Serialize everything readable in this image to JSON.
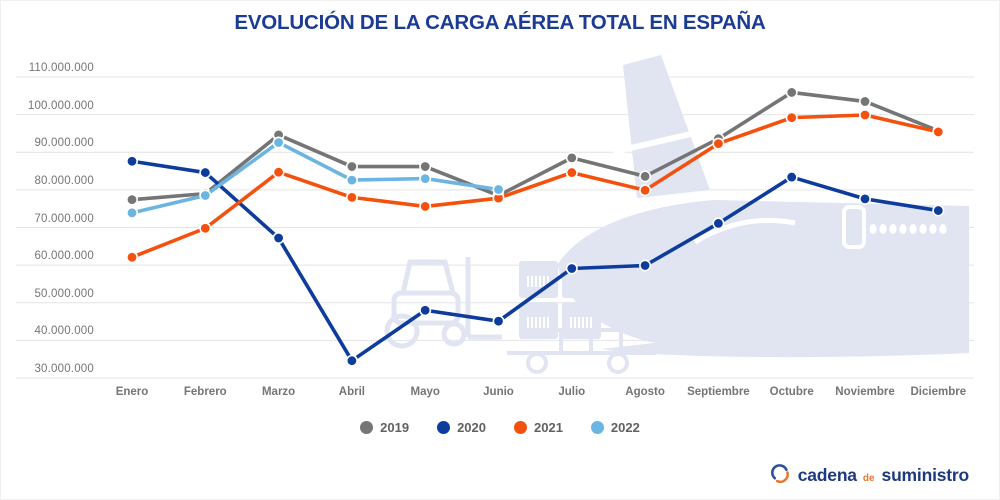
{
  "title": "EVOLUCIÓN DE LA CARGA AÉREA TOTAL EN ESPAÑA",
  "colors": {
    "title": "#1c3c94",
    "axis_text": "#757575",
    "gridline": "#e4e4e4",
    "background": "#ffffff",
    "legend_text": "#616161",
    "watermark": "#e1e4f1"
  },
  "chart_data": {
    "type": "line",
    "title": "EVOLUCIÓN DE LA CARGA AÉREA TOTAL EN ESPAÑA",
    "categories": [
      "Enero",
      "Febrero",
      "Marzo",
      "Abril",
      "Mayo",
      "Junio",
      "Julio",
      "Agosto",
      "Septiembre",
      "Octubre",
      "Noviembre",
      "Diciembre"
    ],
    "ylim": [
      30000000,
      110000000
    ],
    "y_step": 10000000,
    "y_tick_labels": [
      "110.000.000",
      "100.000.000",
      "90.000.000",
      "80.000.000",
      "70.000.000",
      "60.000.000",
      "50.000.000",
      "40.000.000",
      "30.000.000"
    ],
    "grid": true,
    "legend_position": "bottom",
    "series": [
      {
        "name": "2019",
        "color": "#757575",
        "values": [
          77400000,
          79000000,
          94600000,
          86200000,
          86200000,
          78500000,
          88500000,
          83600000,
          93600000,
          105900000,
          103500000,
          95700000
        ]
      },
      {
        "name": "2020",
        "color": "#0d3c9c",
        "values": [
          87600000,
          84600000,
          67200000,
          34600000,
          48000000,
          45100000,
          59100000,
          59900000,
          71100000,
          83400000,
          77600000,
          74500000
        ]
      },
      {
        "name": "2021",
        "color": "#f4500e",
        "values": [
          62100000,
          69800000,
          84700000,
          78000000,
          75600000,
          77800000,
          84600000,
          79900000,
          92300000,
          99200000,
          99900000,
          95400000
        ]
      },
      {
        "name": "2022",
        "color": "#6cb5e2",
        "values": [
          73900000,
          78500000,
          92600000,
          82600000,
          83000000,
          80100000,
          null,
          null,
          null,
          null,
          null,
          null
        ]
      }
    ]
  },
  "watermarks": {
    "airplane": "cargo-airplane-watermark",
    "logistics": "forklift-boxes-truck-watermark"
  },
  "logo": {
    "icon": "circular-arrows-icon",
    "brand_parts": [
      "cadena",
      "de",
      "suministro"
    ],
    "color_primary": "#1e3a7e",
    "color_accent": "#e8762d"
  }
}
